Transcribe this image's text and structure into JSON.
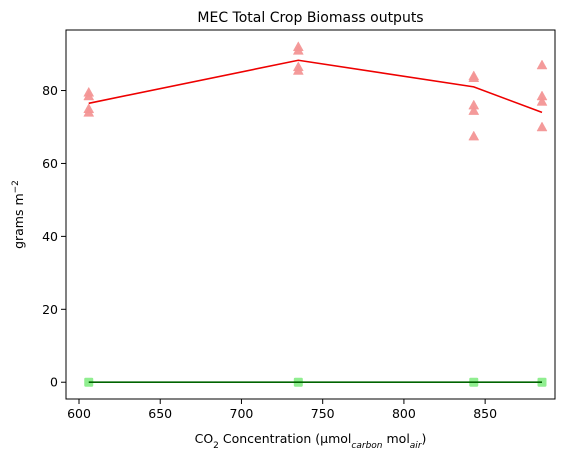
{
  "chart_data": {
    "type": "line",
    "title": "MEC Total Crop Biomass outputs",
    "xlabel": {
      "pre": "CO",
      "pre_sub": "2",
      "mid": " Concentration (μmol",
      "mid_sub": "carbon",
      "post": " mol",
      "post_sub": "air",
      "end": ")"
    },
    "ylabel": {
      "base": "grams m",
      "sup": "−2"
    },
    "xlim": [
      592,
      893
    ],
    "ylim": [
      -4.6,
      96.6
    ],
    "xticks": [
      600,
      650,
      700,
      750,
      800,
      850
    ],
    "yticks": [
      0,
      20,
      40,
      60,
      80
    ],
    "grid": false,
    "series": [
      {
        "kind": "scatter",
        "marker": "triangle",
        "color": "#f49595",
        "points": [
          [
            606,
            74
          ],
          [
            606,
            75
          ],
          [
            606,
            78.5
          ],
          [
            606,
            79.5
          ],
          [
            735,
            85.5
          ],
          [
            735,
            86.5
          ],
          [
            735,
            91
          ],
          [
            735,
            92
          ],
          [
            843,
            67.5
          ],
          [
            843,
            74.5
          ],
          [
            843,
            76
          ],
          [
            843,
            83.5
          ],
          [
            843,
            84
          ],
          [
            885,
            70
          ],
          [
            885,
            77
          ],
          [
            885,
            78.5
          ],
          [
            885,
            87
          ]
        ]
      },
      {
        "kind": "line",
        "color": "#ee0000",
        "x": [
          606,
          735,
          843,
          885
        ],
        "y": [
          76.5,
          88.3,
          81,
          74
        ]
      },
      {
        "kind": "scatter",
        "marker": "square",
        "color": "#90ee90",
        "points": [
          [
            606,
            0
          ],
          [
            735,
            0
          ],
          [
            843,
            0
          ],
          [
            885,
            0
          ]
        ]
      },
      {
        "kind": "line",
        "color": "#006400",
        "x": [
          606,
          735,
          843,
          885
        ],
        "y": [
          0,
          0,
          0,
          0
        ]
      }
    ]
  }
}
